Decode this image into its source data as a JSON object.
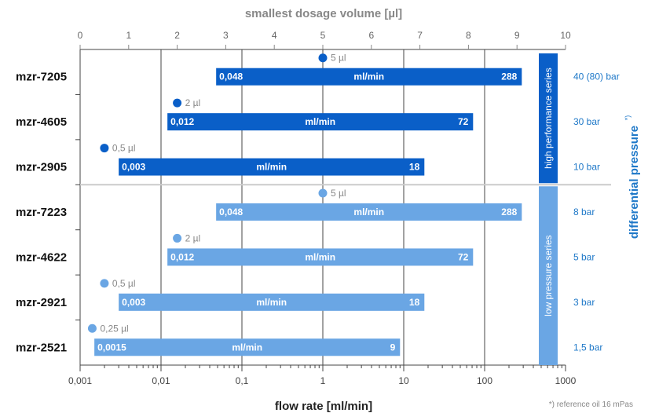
{
  "chart_data": {
    "type": "bar",
    "xlabel": "flow rate [ml/min]",
    "x_scale": "log",
    "x_ticks": [
      "0,001",
      "0,01",
      "0,1",
      "1",
      "10",
      "100",
      "1000"
    ],
    "xlim": [
      0.001,
      1000
    ],
    "top_axis_label": "smallest dosage volume [µl]",
    "top_axis_ticks": [
      "0",
      "1",
      "2",
      "3",
      "4",
      "5",
      "6",
      "7",
      "8",
      "9",
      "10"
    ],
    "top_axis_range": [
      0,
      10
    ],
    "right_axis_label": "differential pressure",
    "right_axis_marker": "*)",
    "footnote": "*) reference oil 16 mPas",
    "bar_unit_label": "ml/min",
    "colors": {
      "high": "#0a5fc8",
      "low": "#6aa6e4",
      "grid": "#444444",
      "divider": "#cccccc"
    },
    "groups": [
      {
        "name": "high performance series",
        "color": "#0a5fc8"
      },
      {
        "name": "low pressure series",
        "color": "#6aa6e4"
      }
    ],
    "series": [
      {
        "name": "mzr-7205",
        "group": 0,
        "min": 0.048,
        "max": 288,
        "min_label": "0,048",
        "max_label": "288",
        "dose": 5,
        "dose_label": "5 µl",
        "pressure": "40 (80) bar"
      },
      {
        "name": "mzr-4605",
        "group": 0,
        "min": 0.012,
        "max": 72,
        "min_label": "0,012",
        "max_label": "72",
        "dose": 2,
        "dose_label": "2 µl",
        "pressure": "30 bar"
      },
      {
        "name": "mzr-2905",
        "group": 0,
        "min": 0.003,
        "max": 18,
        "min_label": "0,003",
        "max_label": "18",
        "dose": 0.5,
        "dose_label": "0,5 µl",
        "pressure": "10 bar"
      },
      {
        "name": "mzr-7223",
        "group": 1,
        "min": 0.048,
        "max": 288,
        "min_label": "0,048",
        "max_label": "288",
        "dose": 5,
        "dose_label": "5 µl",
        "pressure": "8 bar"
      },
      {
        "name": "mzr-4622",
        "group": 1,
        "min": 0.012,
        "max": 72,
        "min_label": "0,012",
        "max_label": "72",
        "dose": 2,
        "dose_label": "2 µl",
        "pressure": "5 bar"
      },
      {
        "name": "mzr-2921",
        "group": 1,
        "min": 0.003,
        "max": 18,
        "min_label": "0,003",
        "max_label": "18",
        "dose": 0.5,
        "dose_label": "0,5 µl",
        "pressure": "3 bar"
      },
      {
        "name": "mzr-2521",
        "group": 1,
        "min": 0.0015,
        "max": 9,
        "min_label": "0,0015",
        "max_label": "9",
        "dose": 0.25,
        "dose_label": "0,25 µl",
        "pressure": "1,5 bar"
      }
    ]
  }
}
